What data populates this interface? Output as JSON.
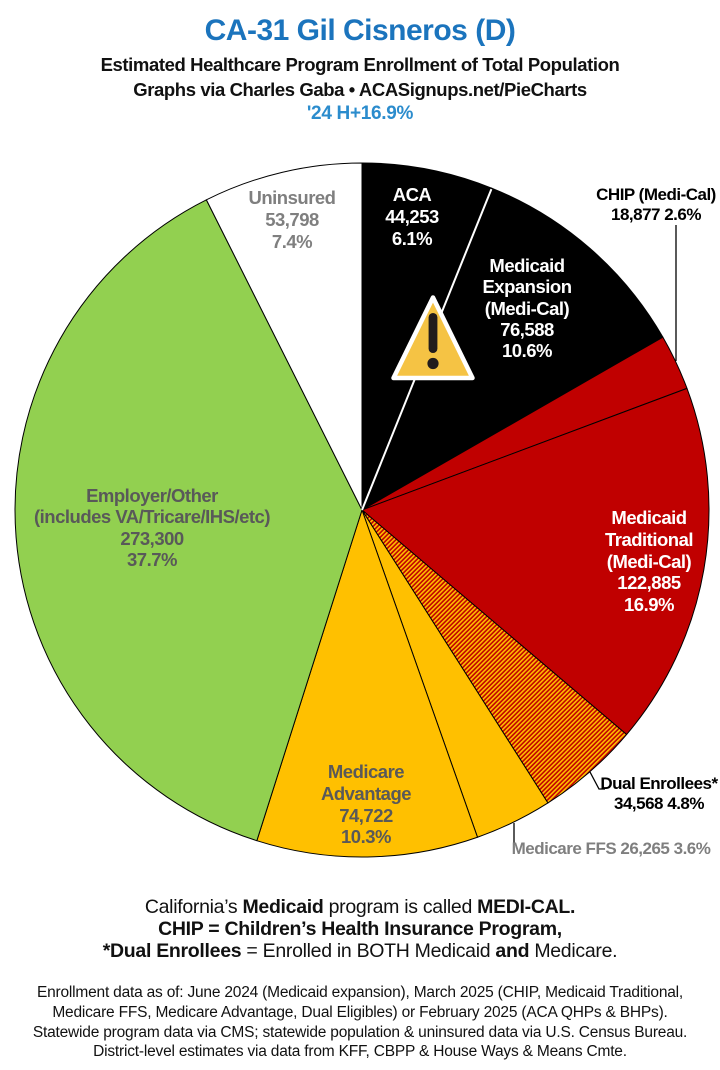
{
  "header": {
    "title": "CA-31 Gil Cisneros (D)",
    "subtitle": "Estimated Healthcare Program Enrollment of Total Population",
    "byline": "Graphs via Charles Gaba   •   ACASignups.net/PieCharts",
    "growth_note": "'24 H+16.9%"
  },
  "colors": {
    "title_blue": "#1B74BD",
    "growth_blue": "#2B8CCD",
    "pie_black": "#000000",
    "pie_red": "#C00000",
    "pie_yellow": "#FFC000",
    "pie_green": "#92D050",
    "pie_white": "#FFFFFF",
    "label_gray": "#7F7F7F",
    "label_dark_gray": "#595959",
    "warning_gold": "#F5C344"
  },
  "chart_data": {
    "type": "pie",
    "title": "CA-31 Gil Cisneros (D)",
    "subtitle": "Estimated Healthcare Program Enrollment of Total Population",
    "direction": "clockwise",
    "start_angle_deg": 0,
    "legend_position": "labels-on-slices",
    "warning_icon": "warning-triangle-icon",
    "slices": [
      {
        "id": "aca",
        "label": "ACA",
        "value": 44253,
        "value_text": "44,253",
        "pct": 6.1,
        "pct_text": "6.1%",
        "color": "#000000",
        "label_placement": "inside",
        "display_lines": [
          "ACA",
          "44,253",
          "6.1%"
        ]
      },
      {
        "id": "medicaid-expansion",
        "label": "Medicaid Expansion (Medi-Cal)",
        "value": 76588,
        "value_text": "76,588",
        "pct": 10.6,
        "pct_text": "10.6%",
        "color": "#000000",
        "label_placement": "inside",
        "display_lines": [
          "Medicaid",
          "Expansion",
          "(Medi-Cal)",
          "76,588",
          "10.6%"
        ]
      },
      {
        "id": "chip",
        "label": "CHIP (Medi-Cal)",
        "value": 18877,
        "value_text": "18,877",
        "pct": 2.6,
        "pct_text": "2.6%",
        "color": "#C00000",
        "label_placement": "outside",
        "display_lines": [
          "CHIP (Medi-Cal)",
          "18,877 2.6%"
        ]
      },
      {
        "id": "medicaid-traditional",
        "label": "Medicaid Traditional (Medi-Cal)",
        "value": 122885,
        "value_text": "122,885",
        "pct": 16.9,
        "pct_text": "16.9%",
        "color": "#C00000",
        "label_placement": "inside",
        "display_lines": [
          "Medicaid",
          "Traditional",
          "(Medi-Cal)",
          "122,885",
          "16.9%"
        ]
      },
      {
        "id": "dual-enrollees",
        "label": "Dual Enrollees*",
        "value": 34568,
        "value_text": "34,568",
        "pct": 4.8,
        "pct_text": "4.8%",
        "color": "hatch-red-yellow",
        "label_placement": "outside",
        "display_lines": [
          "Dual Enrollees*",
          "34,568 4.8%"
        ]
      },
      {
        "id": "medicare-ffs",
        "label": "Medicare FFS",
        "value": 26265,
        "value_text": "26,265",
        "pct": 3.6,
        "pct_text": "3.6%",
        "color": "#FFC000",
        "label_placement": "outside",
        "display_lines": [
          "Medicare FFS 26,265 3.6%"
        ]
      },
      {
        "id": "medicare-advantage",
        "label": "Medicare Advantage",
        "value": 74722,
        "value_text": "74,722",
        "pct": 10.3,
        "pct_text": "10.3%",
        "color": "#FFC000",
        "label_placement": "inside",
        "display_lines": [
          "Medicare",
          "Advantage",
          "74,722",
          "10.3%"
        ]
      },
      {
        "id": "employer-other",
        "label": "Employer/Other (includes VA/Tricare/IHS/etc)",
        "value": 273300,
        "value_text": "273,300",
        "pct": 37.7,
        "pct_text": "37.7%",
        "color": "#92D050",
        "label_placement": "inside",
        "display_lines": [
          "Employer/Other",
          "(includes VA/Tricare/IHS/etc)",
          "273,300",
          "37.7%"
        ]
      },
      {
        "id": "uninsured",
        "label": "Uninsured",
        "value": 53798,
        "value_text": "53,798",
        "pct": 7.4,
        "pct_text": "7.4%",
        "color": "#FFFFFF",
        "label_placement": "inside",
        "display_lines": [
          "Uninsured",
          "53,798",
          "7.4%"
        ]
      }
    ]
  },
  "notes": {
    "lines": [
      [
        {
          "t": "California’s ",
          "b": false
        },
        {
          "t": "Medicaid",
          "b": true
        },
        {
          "t": " program is called ",
          "b": false
        },
        {
          "t": "MEDI-CAL.",
          "b": true
        }
      ],
      [
        {
          "t": "CHIP",
          "b": true
        },
        {
          "t": " = ",
          "b": true
        },
        {
          "t": "Children’s Health Insurance Program,",
          "b": true
        }
      ],
      [
        {
          "t": "*Dual Enrollees",
          "b": true
        },
        {
          "t": " = Enrolled in BOTH Medicaid ",
          "b": false
        },
        {
          "t": "and",
          "b": true
        },
        {
          "t": " Medicare.",
          "b": false
        }
      ]
    ]
  },
  "footer": {
    "lines": [
      "Enrollment data as of: June 2024 (Medicaid expansion), March 2025 (CHIP, Medicaid Traditional,",
      "Medicare FFS, Medicare Advantage, Dual Eligibles) or February 2025 (ACA QHPs & BHPs).",
      "Statewide program data via CMS; statewide population & uninsured data via U.S. Census Bureau.",
      "District-level estimates via data from KFF, CBPP & House Ways & Means Cmte."
    ]
  }
}
